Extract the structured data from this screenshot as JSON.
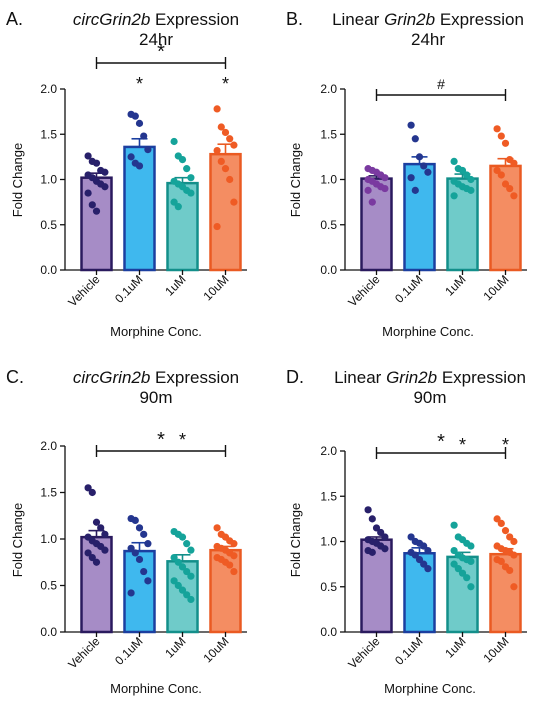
{
  "chart_data": [
    {
      "type": "bar",
      "panel_letter": "A.",
      "title_italic": "circGrin2b",
      "title_rest": " Expression",
      "subtitle": "24hr",
      "xlabel": "Morphine Conc.",
      "ylabel": "Fold Change",
      "ylim": [
        0,
        2.0
      ],
      "yticks": [
        "0.0",
        "0.5",
        "1.0",
        "1.5",
        "2.0"
      ],
      "categories": [
        "Vehicle",
        "0.1uM",
        "1uM",
        "10uM"
      ],
      "colors": [
        "#a68cc6",
        "#3fb8ee",
        "#6fcbc9",
        "#f48d62"
      ],
      "dot_colors": [
        "#28206a",
        "#24368f",
        "#15a39a",
        "#ef5b24"
      ],
      "edge_colors": [
        "#2a1a5e",
        "#1b3fa0",
        "#138f8a",
        "#ea5a22"
      ],
      "values": [
        1.02,
        1.36,
        0.96,
        1.28
      ],
      "errors": [
        0.05,
        0.09,
        0.06,
        0.11
      ],
      "points": [
        [
          1.26,
          1.2,
          1.18,
          1.1,
          1.08,
          1.05,
          1.02,
          0.98,
          0.95,
          0.92,
          0.85,
          0.72,
          0.65
        ],
        [
          1.72,
          1.7,
          1.62,
          1.48,
          1.33,
          1.25,
          1.18,
          1.15
        ],
        [
          1.42,
          1.26,
          1.22,
          1.12,
          1.02,
          0.98,
          0.95,
          0.92,
          0.88,
          0.85,
          0.75,
          0.7
        ],
        [
          1.78,
          1.58,
          1.52,
          1.45,
          1.38,
          1.32,
          1.2,
          1.12,
          1.0,
          0.75,
          0.48
        ]
      ],
      "bar_stars": [
        "",
        "*",
        "",
        "*"
      ],
      "bracket_symbol": "*"
    },
    {
      "type": "bar",
      "panel_letter": "B.",
      "title_prefix": "Linear ",
      "title_italic": "Grin2b",
      "title_rest": " Expression",
      "subtitle": "24hr",
      "xlabel": "Morphine Conc.",
      "ylabel": "Fold Change",
      "ylim": [
        0,
        2.0
      ],
      "yticks": [
        "0.0",
        "0.5",
        "1.0",
        "1.5",
        "2.0"
      ],
      "categories": [
        "Vehicle",
        "0.1uM",
        "1uM",
        "10uM"
      ],
      "colors": [
        "#a68cc6",
        "#3fb8ee",
        "#6fcbc9",
        "#f48d62"
      ],
      "dot_colors": [
        "#7a3aa0",
        "#24368f",
        "#15a39a",
        "#ef5b24"
      ],
      "edge_colors": [
        "#2a1a5e",
        "#1b3fa0",
        "#138f8a",
        "#ea5a22"
      ],
      "values": [
        1.01,
        1.17,
        1.01,
        1.15
      ],
      "errors": [
        0.03,
        0.08,
        0.05,
        0.08
      ],
      "points": [
        [
          1.12,
          1.1,
          1.08,
          1.05,
          1.02,
          1.0,
          0.98,
          0.95,
          0.92,
          0.9,
          0.88,
          0.75
        ],
        [
          1.6,
          1.45,
          1.25,
          1.15,
          1.08,
          1.02,
          0.88
        ],
        [
          1.2,
          1.12,
          1.1,
          1.05,
          1.0,
          0.98,
          0.95,
          0.92,
          0.9,
          0.88,
          0.82
        ],
        [
          1.56,
          1.48,
          1.4,
          1.22,
          1.18,
          1.1,
          1.05,
          0.95,
          0.9,
          0.82
        ]
      ],
      "bar_stars": [
        "",
        "",
        "",
        ""
      ],
      "bracket_symbol": "#"
    },
    {
      "type": "bar",
      "panel_letter": "C.",
      "title_italic": "circGrin2b",
      "title_rest": " Expression",
      "subtitle": "90m",
      "xlabel": "Morphine Conc.",
      "ylabel": "Fold Change",
      "ylim": [
        0,
        2.0
      ],
      "yticks": [
        "0.0",
        "0.5",
        "1.0",
        "1.5",
        "2.0"
      ],
      "categories": [
        "Vehicle",
        "0.1uM",
        "1uM",
        "10uM"
      ],
      "colors": [
        "#a68cc6",
        "#3fb8ee",
        "#6fcbc9",
        "#f48d62"
      ],
      "dot_colors": [
        "#28206a",
        "#24368f",
        "#15a39a",
        "#ef5b24"
      ],
      "edge_colors": [
        "#2a1a5e",
        "#1b3fa0",
        "#138f8a",
        "#ea5a22"
      ],
      "values": [
        1.02,
        0.87,
        0.76,
        0.88
      ],
      "errors": [
        0.07,
        0.09,
        0.07,
        0.04
      ],
      "points": [
        [
          1.55,
          1.5,
          1.18,
          1.12,
          1.05,
          1.02,
          0.98,
          0.95,
          0.92,
          0.88,
          0.85,
          0.8,
          0.75
        ],
        [
          1.22,
          1.2,
          1.12,
          1.05,
          0.95,
          0.9,
          0.85,
          0.78,
          0.65,
          0.55,
          0.42
        ],
        [
          1.08,
          1.05,
          1.02,
          0.95,
          0.88,
          0.8,
          0.75,
          0.7,
          0.65,
          0.6,
          0.55,
          0.5,
          0.45,
          0.4,
          0.35
        ],
        [
          1.12,
          1.05,
          1.02,
          0.98,
          0.95,
          0.92,
          0.9,
          0.88,
          0.85,
          0.82,
          0.8,
          0.78,
          0.75,
          0.72,
          0.65
        ]
      ],
      "bar_stars": [
        "",
        "",
        "*",
        ""
      ],
      "bracket_symbol": "*"
    },
    {
      "type": "bar",
      "panel_letter": "D.",
      "title_prefix": "Linear ",
      "title_italic": "Grin2b",
      "title_rest": " Expression",
      "subtitle": "90m",
      "xlabel": "Morphine Conc.",
      "ylabel": "Fold Change",
      "ylim": [
        0,
        2.0
      ],
      "yticks": [
        "0.0",
        "0.5",
        "1.0",
        "1.5",
        "2.0"
      ],
      "categories": [
        "Vehicle",
        "0.1uM",
        "1uM",
        "10uM"
      ],
      "colors": [
        "#a68cc6",
        "#3fb8ee",
        "#6fcbc9",
        "#f48d62"
      ],
      "dot_colors": [
        "#28206a",
        "#24368f",
        "#15a39a",
        "#ef5b24"
      ],
      "edge_colors": [
        "#2a1a5e",
        "#1b3fa0",
        "#138f8a",
        "#ea5a22"
      ],
      "values": [
        1.02,
        0.87,
        0.83,
        0.86
      ],
      "errors": [
        0.03,
        0.06,
        0.05,
        0.06
      ],
      "points": [
        [
          1.35,
          1.25,
          1.15,
          1.1,
          1.05,
          1.02,
          1.0,
          0.98,
          0.95,
          0.92,
          0.9,
          0.88
        ],
        [
          1.05,
          1.0,
          0.98,
          0.95,
          0.9,
          0.88,
          0.85,
          0.8,
          0.75,
          0.7
        ],
        [
          1.18,
          1.05,
          1.02,
          0.98,
          0.95,
          0.9,
          0.85,
          0.82,
          0.8,
          0.78,
          0.75,
          0.7,
          0.65,
          0.6,
          0.5
        ],
        [
          1.25,
          1.2,
          1.12,
          1.05,
          1.0,
          0.95,
          0.92,
          0.9,
          0.88,
          0.85,
          0.8,
          0.78,
          0.72,
          0.68,
          0.5
        ]
      ],
      "bar_stars": [
        "",
        "",
        "*",
        "*"
      ],
      "bracket_symbol": "*"
    }
  ]
}
